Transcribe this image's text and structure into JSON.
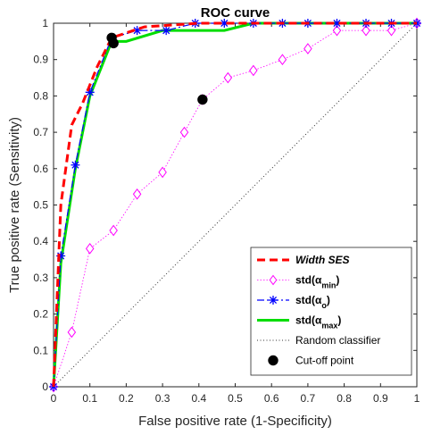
{
  "chart_data": {
    "type": "line",
    "title": "ROC curve",
    "xlabel": "False positive rate (1-Specificity)",
    "ylabel": "True positive rate (Sensitivity)",
    "xlim": [
      0,
      1
    ],
    "ylim": [
      0,
      1
    ],
    "xticks": [
      "0",
      "0.1",
      "0.2",
      "0.3",
      "0.4",
      "0.5",
      "0.6",
      "0.7",
      "0.8",
      "0.9",
      "1"
    ],
    "yticks": [
      "0",
      "0.1",
      "0.2",
      "0.3",
      "0.4",
      "0.5",
      "0.6",
      "0.7",
      "0.8",
      "0.9",
      "1"
    ],
    "grid": false,
    "legend_position": "bottom-right",
    "series": [
      {
        "name": "Width SES",
        "label_parts": [
          {
            "text": "Width SES"
          }
        ],
        "color": "#ff0000",
        "style": "dashed",
        "marker": "none",
        "x": [
          0,
          0.02,
          0.05,
          0.08,
          0.12,
          0.16,
          0.25,
          0.4,
          0.55,
          0.7,
          0.85,
          1
        ],
        "y": [
          0,
          0.5,
          0.72,
          0.78,
          0.88,
          0.96,
          0.99,
          1,
          1,
          1,
          1,
          1
        ]
      },
      {
        "name": "std(αmin)",
        "label_parts": [
          {
            "text": "std(α"
          },
          {
            "text": "min",
            "sub": true
          },
          {
            "text": ")"
          }
        ],
        "color": "#ff00ff",
        "style": "dotted",
        "marker": "diamond",
        "x": [
          0,
          0.05,
          0.1,
          0.165,
          0.23,
          0.3,
          0.36,
          0.41,
          0.48,
          0.55,
          0.63,
          0.7,
          0.78,
          0.86,
          0.93,
          1
        ],
        "y": [
          0,
          0.15,
          0.38,
          0.43,
          0.53,
          0.59,
          0.7,
          0.79,
          0.85,
          0.87,
          0.9,
          0.93,
          0.98,
          0.98,
          0.98,
          1
        ]
      },
      {
        "name": "std(αo)",
        "label_parts": [
          {
            "text": "std(α"
          },
          {
            "text": "o",
            "sub": true
          },
          {
            "text": ")"
          }
        ],
        "color": "#0000ff",
        "style": "dashdot",
        "marker": "asterisk",
        "x": [
          0,
          0.02,
          0.06,
          0.1,
          0.16,
          0.23,
          0.31,
          0.39,
          0.47,
          0.55,
          0.63,
          0.7,
          0.78,
          0.86,
          0.93,
          1
        ],
        "y": [
          0,
          0.36,
          0.61,
          0.81,
          0.96,
          0.98,
          0.98,
          1,
          1,
          1,
          1,
          1,
          1,
          1,
          1,
          1
        ]
      },
      {
        "name": "std(αmax)",
        "label_parts": [
          {
            "text": "std(α"
          },
          {
            "text": "max",
            "sub": true
          },
          {
            "text": ")"
          }
        ],
        "color": "#00dd00",
        "style": "solid",
        "marker": "none",
        "x": [
          0,
          0.02,
          0.06,
          0.1,
          0.16,
          0.2,
          0.3,
          0.38,
          0.47,
          0.55,
          0.63,
          1
        ],
        "y": [
          0,
          0.34,
          0.6,
          0.8,
          0.95,
          0.95,
          0.98,
          0.98,
          0.98,
          1,
          1,
          1
        ]
      },
      {
        "name": "Random classifier",
        "label_parts": [
          {
            "text": "Random classifier"
          }
        ],
        "color": "#333333",
        "style": "dotted-fine",
        "marker": "none",
        "x": [
          0,
          1
        ],
        "y": [
          0,
          1
        ]
      },
      {
        "name": "Cut-off point",
        "label_parts": [
          {
            "text": "Cut-off point"
          }
        ],
        "color": "#000000",
        "style": "none",
        "marker": "circle",
        "x": [
          0.16,
          0.165,
          0.41
        ],
        "y": [
          0.96,
          0.945,
          0.79
        ]
      }
    ]
  }
}
